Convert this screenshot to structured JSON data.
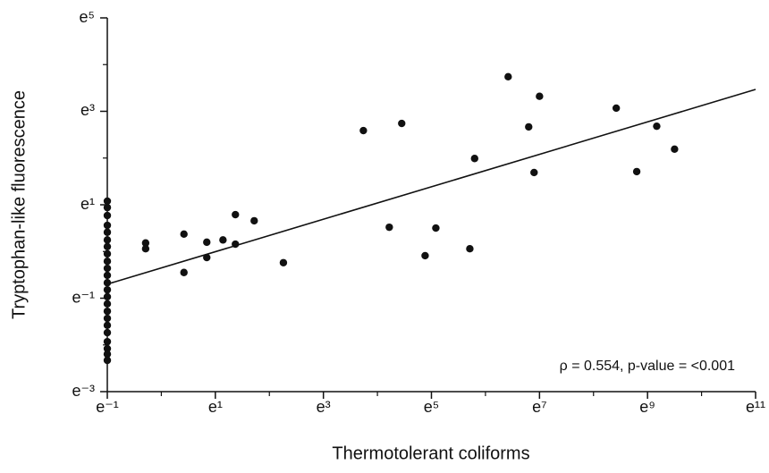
{
  "chart_data": {
    "type": "scatter",
    "xlabel": "Thermotolerant coliforms",
    "ylabel": "Tryptophan-like fluorescence",
    "annotation": "ρ = 0.554, p-value = <0.001",
    "xscale": "log",
    "yscale": "log",
    "xlim": [
      0.3679,
      59874
    ],
    "ylim": [
      0.0498,
      148.4
    ],
    "xticks": [
      {
        "value": 0.3679,
        "label": "e⁻¹"
      },
      {
        "value": 2.718,
        "label": "e¹"
      },
      {
        "value": 20.09,
        "label": "e³"
      },
      {
        "value": 148.4,
        "label": "e⁵"
      },
      {
        "value": 1097,
        "label": "e⁷"
      },
      {
        "value": 8103,
        "label": "e⁹"
      },
      {
        "value": 59874,
        "label": "e¹¹"
      }
    ],
    "x_minor_ticks": [
      1,
      7.389,
      54.6,
      403.4,
      2981,
      22026
    ],
    "yticks": [
      {
        "value": 0.0498,
        "label": "e⁻³"
      },
      {
        "value": 0.3679,
        "label": "e⁻¹"
      },
      {
        "value": 2.718,
        "label": "e¹"
      },
      {
        "value": 20.09,
        "label": "e³"
      },
      {
        "value": 148.4,
        "label": "e⁵"
      }
    ],
    "y_minor_ticks": [
      0.1353,
      1,
      7.389,
      54.6
    ],
    "color": "#111111",
    "x": [
      0.368,
      0.368,
      0.368,
      0.368,
      0.368,
      0.368,
      0.368,
      0.368,
      0.368,
      0.368,
      0.368,
      0.368,
      0.368,
      0.368,
      0.368,
      0.368,
      0.368,
      0.368,
      0.368,
      0.368,
      0.368,
      0.368,
      0.368,
      0.748,
      0.748,
      1.52,
      1.52,
      2.32,
      2.32,
      3.13,
      3.94,
      3.94,
      5.58,
      9.58,
      42.1,
      68.0,
      85.6,
      132,
      161,
      302,
      330,
      614,
      898,
      992,
      1097,
      4540,
      6634,
      9604,
      13360
    ],
    "values": [
      2.94,
      2.56,
      2.16,
      1.75,
      1.51,
      1.28,
      1.11,
      0.951,
      0.811,
      0.698,
      0.6,
      0.512,
      0.44,
      0.379,
      0.326,
      0.278,
      0.239,
      0.206,
      0.176,
      0.145,
      0.125,
      0.111,
      0.0973,
      1.2,
      1.06,
      1.45,
      0.638,
      1.22,
      0.878,
      1.28,
      2.2,
      1.17,
      1.93,
      0.787,
      13.3,
      1.68,
      15.5,
      0.914,
      1.65,
      1.06,
      7.32,
      42.1,
      14.4,
      5.42,
      27.7,
      21.5,
      5.53,
      14.6,
      8.94
    ],
    "fit_line": {
      "x": [
        0.3679,
        59874
      ],
      "y": [
        0.497,
        32.1
      ]
    }
  }
}
